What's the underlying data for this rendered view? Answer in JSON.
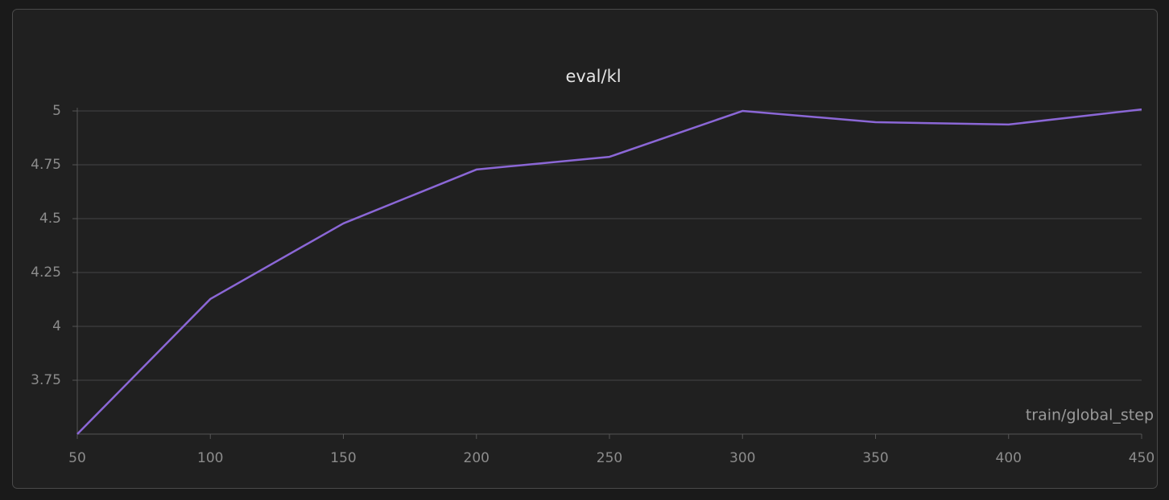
{
  "chart_data": {
    "type": "line",
    "title": "eval/kl",
    "x_label": "train/global_step",
    "x": [
      50,
      100,
      150,
      200,
      250,
      300,
      350,
      400,
      450
    ],
    "series": [
      {
        "name": "eval/kl",
        "color": "#8b67d6",
        "values": [
          3.5,
          4.127,
          4.478,
          4.728,
          4.787,
          5.0,
          4.948,
          4.937,
          5.007
        ]
      }
    ],
    "xlim": [
      50,
      450
    ],
    "xticks": [
      50,
      100,
      150,
      200,
      250,
      300,
      350,
      400,
      450
    ],
    "ylim": [
      3.5,
      5.015
    ],
    "yticks": [
      3.75,
      4,
      4.25,
      4.5,
      4.75,
      5
    ],
    "grid": true
  }
}
